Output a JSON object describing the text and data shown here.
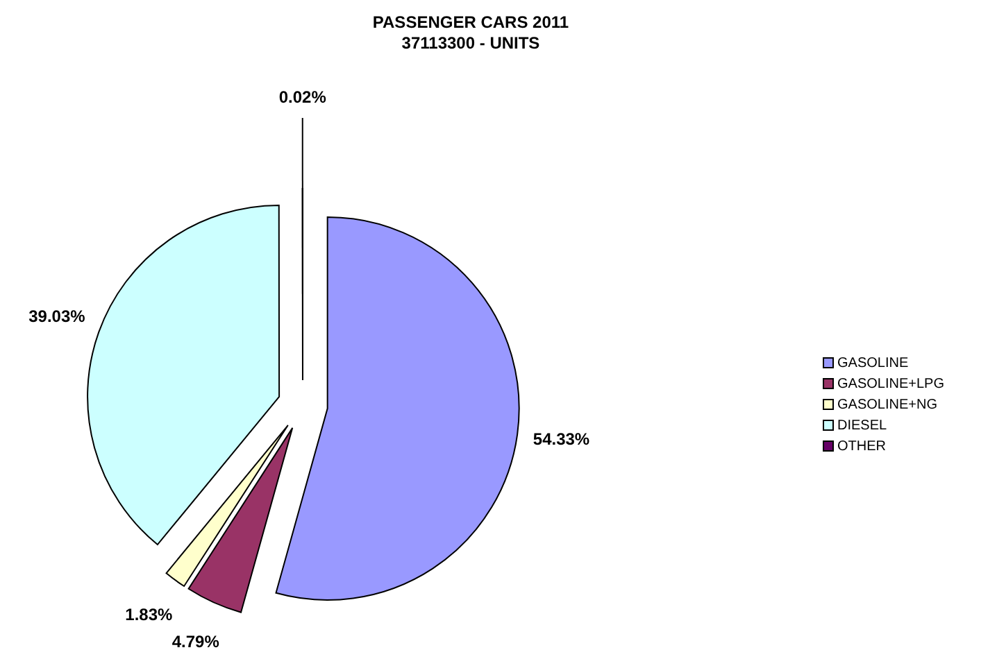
{
  "chart_data": {
    "type": "pie",
    "title": "PASSENGER CARS 2011",
    "subtitle": "37113300 - UNITS",
    "categories": [
      "GASOLINE",
      "GASOLINE+LPG",
      "GASOLINE+NG",
      "DIESEL",
      "OTHER"
    ],
    "values": [
      54.33,
      4.79,
      1.83,
      39.03,
      0.02
    ],
    "value_labels": [
      "54.33%",
      "4.79%",
      "1.83%",
      "39.03%",
      "0.02%"
    ],
    "colors": [
      "#9999ff",
      "#993366",
      "#ffffcc",
      "#ccffff",
      "#660066"
    ],
    "legend": "right"
  }
}
